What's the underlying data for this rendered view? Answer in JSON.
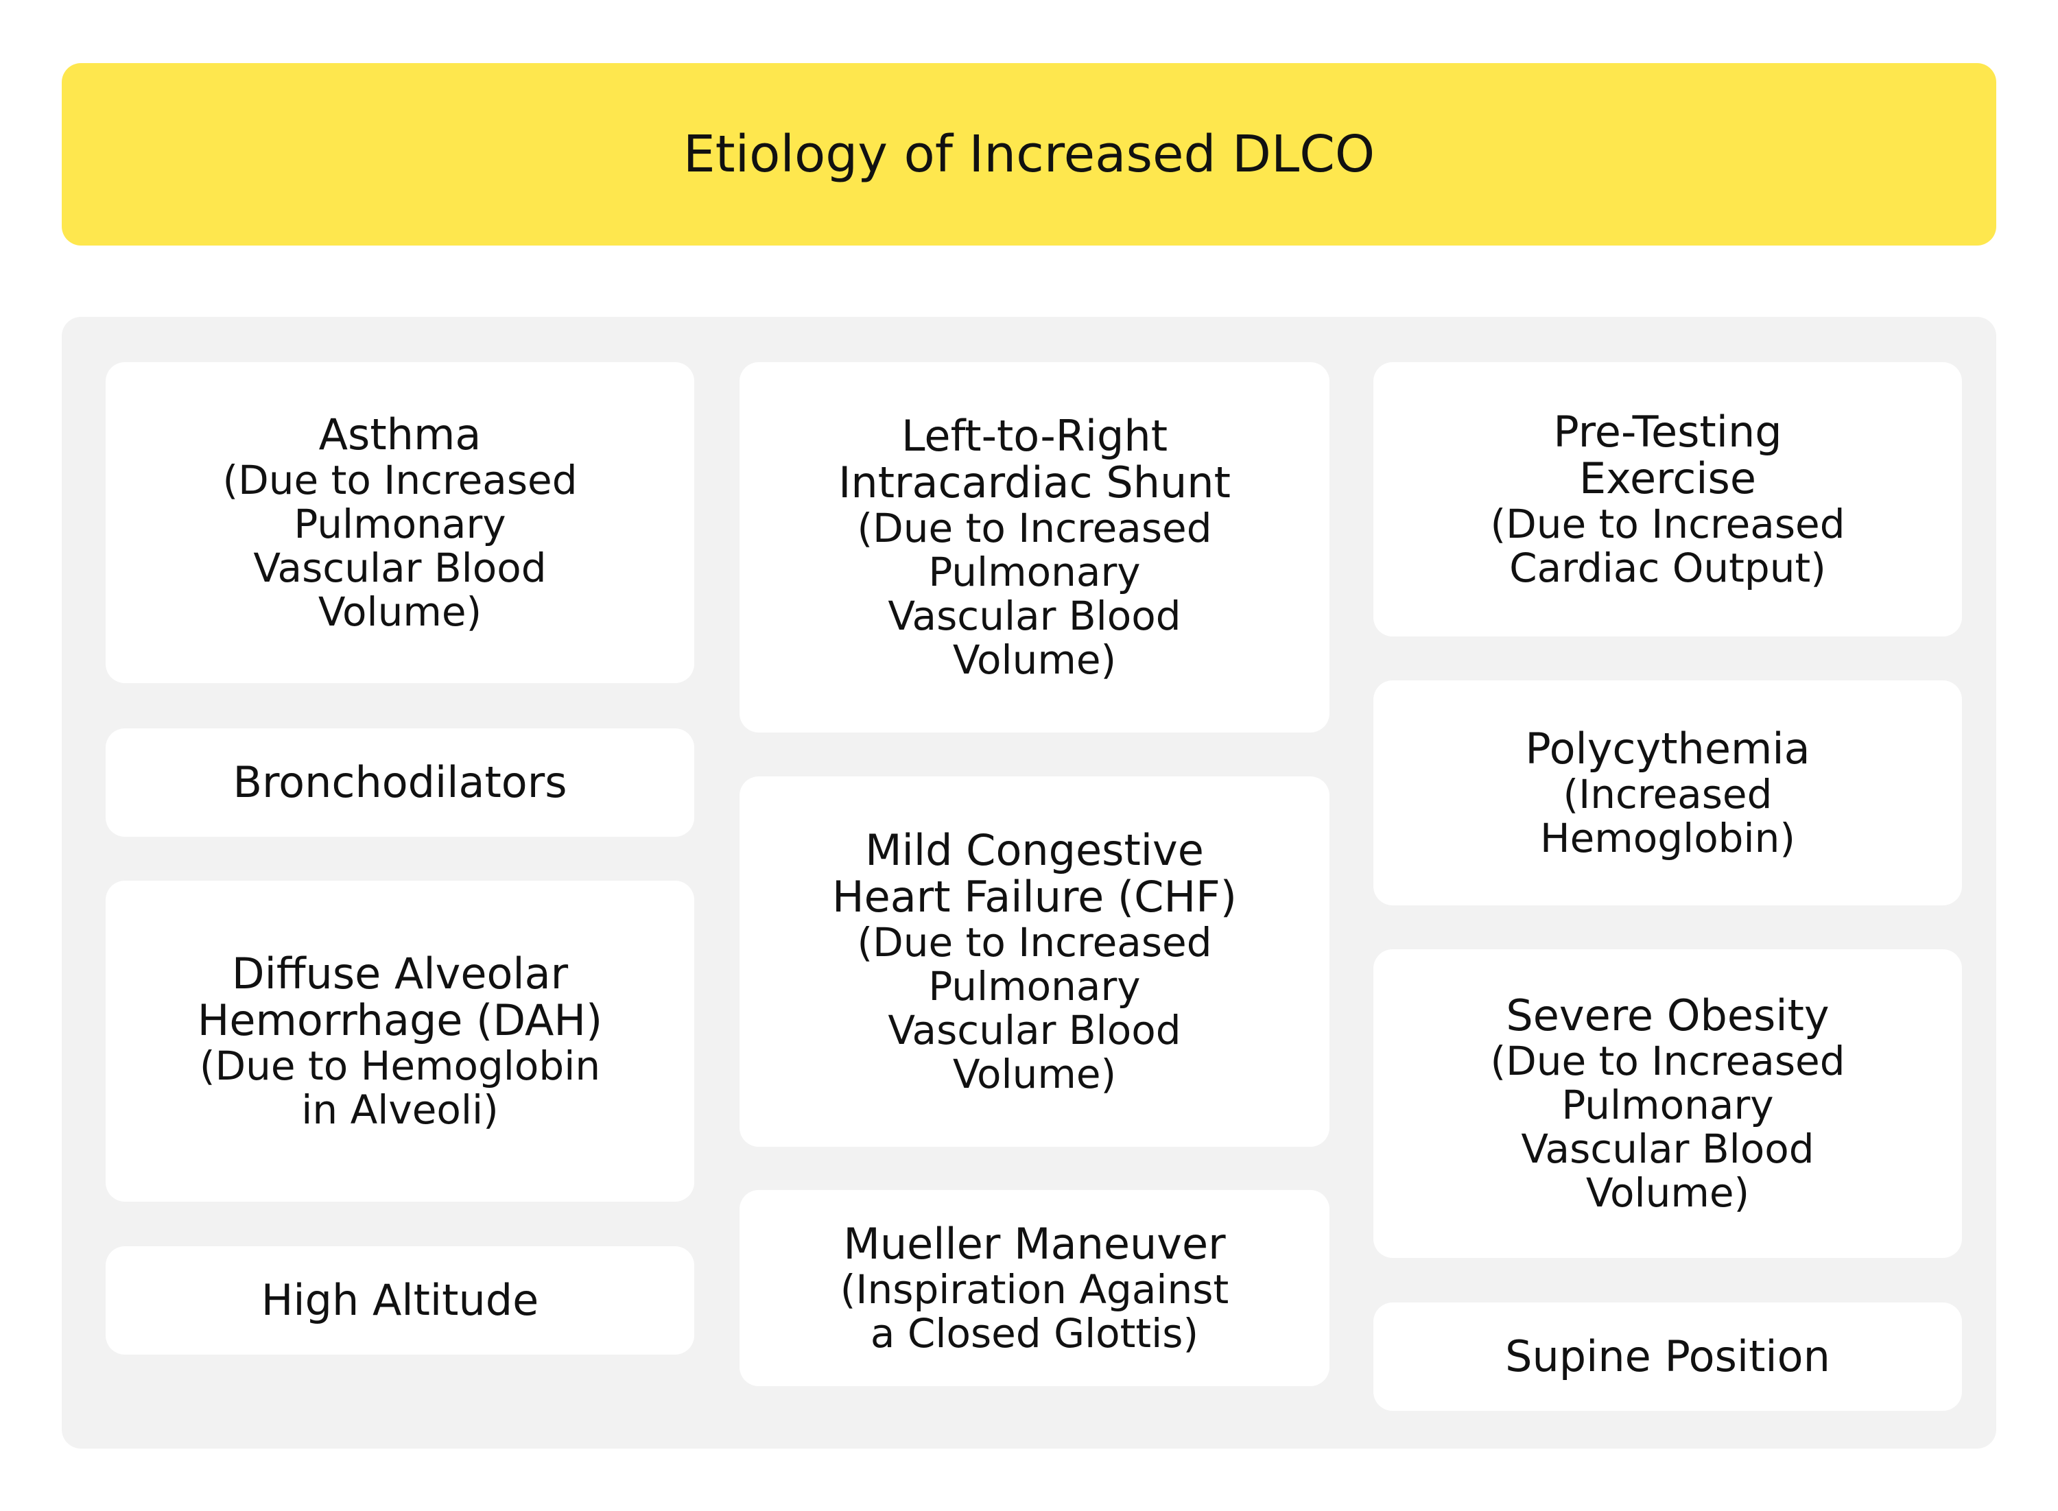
{
  "header": {
    "title": "Etiology of Increased DLCO"
  },
  "columns": [
    {
      "cards": [
        {
          "title": "Asthma",
          "subtitle": "(Due to Increased\nPulmonary\nVascular Blood\nVolume)"
        },
        {
          "title": "Bronchodilators",
          "subtitle": ""
        },
        {
          "title": "Diffuse Alveolar\nHemorrhage (DAH)",
          "subtitle": "(Due to Hemoglobin\nin Alveoli)"
        },
        {
          "title": "High Altitude",
          "subtitle": ""
        }
      ]
    },
    {
      "cards": [
        {
          "title": "Left-to-Right\nIntracardiac Shunt",
          "subtitle": "(Due to Increased\nPulmonary\nVascular Blood\nVolume)"
        },
        {
          "title": "Mild Congestive\nHeart Failure (CHF)",
          "subtitle": "(Due to Increased\nPulmonary\nVascular Blood\nVolume)"
        },
        {
          "title": "Mueller Maneuver",
          "subtitle": "(Inspiration Against\na Closed Glottis)"
        }
      ]
    },
    {
      "cards": [
        {
          "title": "Pre-Testing\nExercise",
          "subtitle": "(Due to Increased\nCardiac Output)"
        },
        {
          "title": "Polycythemia",
          "subtitle": "(Increased\nHemoglobin)"
        },
        {
          "title": "Severe Obesity",
          "subtitle": "(Due to Increased\nPulmonary\nVascular Blood\nVolume)"
        },
        {
          "title": "Supine Position",
          "subtitle": ""
        }
      ]
    }
  ],
  "colors": {
    "header_background": "#fee74e",
    "panel_background": "#f2f2f2",
    "card_background": "#ffffff"
  }
}
